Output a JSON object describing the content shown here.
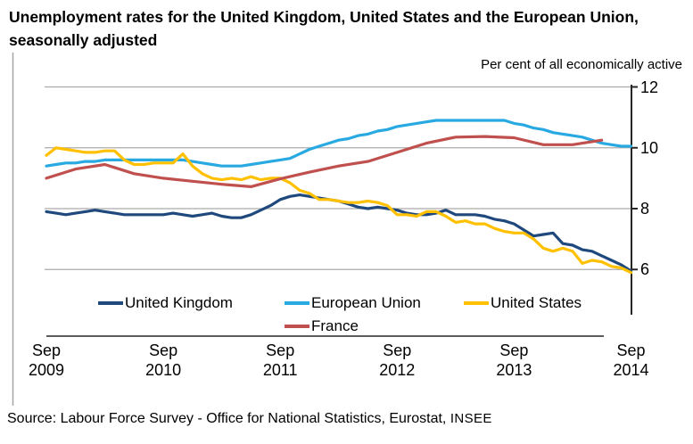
{
  "title": {
    "line1": "Unemployment rates for the United Kingdom, United States and the European Union,",
    "line2": "seasonally adjusted"
  },
  "chart": {
    "axis_title": "Per cent of all economically active",
    "y_tick_labels": [
      "12",
      "10",
      "8",
      "6"
    ],
    "x_ticks": [
      {
        "month": "Sep",
        "year": "2009"
      },
      {
        "month": "Sep",
        "year": "2010"
      },
      {
        "month": "Sep",
        "year": "2011"
      },
      {
        "month": "Sep",
        "year": "2012"
      },
      {
        "month": "Sep",
        "year": "2013"
      },
      {
        "month": "Sep",
        "year": "2014"
      }
    ],
    "legend": [
      {
        "label": "United Kingdom",
        "color": "#1F497D"
      },
      {
        "label": "European Union",
        "color": "#29A9E1"
      },
      {
        "label": "United States",
        "color": "#FFC000"
      },
      {
        "label": "France",
        "color": "#C0504D"
      }
    ],
    "colors": {
      "gridline": "#ABABAB",
      "axis": "#262626",
      "border": "#A6A6A6"
    }
  },
  "source": {
    "main": "Source: Labour Force Survey - Office for National Statistics, Eurostat,",
    "extra": "INSEE"
  },
  "chart_data": {
    "type": "line",
    "title": "Unemployment rates for the United Kingdom, United States and the European Union, seasonally adjusted",
    "ylabel": "Per cent of all economically active",
    "x_start": "2009-09",
    "x_end": "2014-09",
    "x_tick_labels": [
      "Sep 2009",
      "Sep 2010",
      "Sep 2011",
      "Sep 2012",
      "Sep 2013",
      "Sep 2014"
    ],
    "y_ticks": [
      6,
      8,
      10,
      12
    ],
    "ylim": [
      4.5,
      12
    ],
    "grid": true,
    "legend_position": "bottom",
    "series": [
      {
        "name": "United Kingdom",
        "color": "#1F497D",
        "start": "2009-09",
        "interval_months": 1,
        "values": [
          7.9,
          7.85,
          7.8,
          7.85,
          7.9,
          7.95,
          7.9,
          7.85,
          7.8,
          7.8,
          7.8,
          7.8,
          7.8,
          7.85,
          7.8,
          7.75,
          7.8,
          7.85,
          7.75,
          7.7,
          7.7,
          7.8,
          7.95,
          8.1,
          8.3,
          8.4,
          8.45,
          8.4,
          8.35,
          8.3,
          8.25,
          8.15,
          8.05,
          8.0,
          8.05,
          8.0,
          7.95,
          7.85,
          7.8,
          7.8,
          7.85,
          7.95,
          7.8,
          7.8,
          7.8,
          7.75,
          7.65,
          7.6,
          7.5,
          7.3,
          7.1,
          7.15,
          7.2,
          6.85,
          6.8,
          6.65,
          6.6,
          6.45,
          6.3,
          6.15,
          5.95
        ]
      },
      {
        "name": "European Union",
        "color": "#29A9E1",
        "start": "2009-09",
        "interval_months": 1,
        "values": [
          9.4,
          9.45,
          9.5,
          9.5,
          9.55,
          9.55,
          9.6,
          9.6,
          9.6,
          9.6,
          9.6,
          9.6,
          9.6,
          9.6,
          9.6,
          9.55,
          9.5,
          9.45,
          9.4,
          9.4,
          9.4,
          9.45,
          9.5,
          9.55,
          9.6,
          9.65,
          9.8,
          9.95,
          10.05,
          10.15,
          10.25,
          10.3,
          10.4,
          10.45,
          10.55,
          10.6,
          10.7,
          10.75,
          10.8,
          10.85,
          10.9,
          10.9,
          10.9,
          10.9,
          10.9,
          10.9,
          10.9,
          10.9,
          10.8,
          10.75,
          10.65,
          10.6,
          10.5,
          10.45,
          10.4,
          10.35,
          10.25,
          10.15,
          10.1,
          10.05,
          10.05
        ]
      },
      {
        "name": "United States",
        "color": "#FFC000",
        "start": "2009-09",
        "interval_months": 1,
        "values": [
          9.75,
          10.0,
          9.95,
          9.9,
          9.85,
          9.85,
          9.9,
          9.9,
          9.6,
          9.45,
          9.45,
          9.5,
          9.5,
          9.5,
          9.8,
          9.4,
          9.15,
          9.0,
          8.95,
          9.0,
          8.95,
          9.05,
          8.95,
          9.0,
          9.0,
          8.85,
          8.6,
          8.5,
          8.3,
          8.3,
          8.25,
          8.2,
          8.2,
          8.25,
          8.2,
          8.1,
          7.8,
          7.8,
          7.75,
          7.9,
          7.9,
          7.75,
          7.55,
          7.6,
          7.5,
          7.5,
          7.35,
          7.25,
          7.2,
          7.2,
          7.0,
          6.7,
          6.6,
          6.7,
          6.6,
          6.2,
          6.3,
          6.25,
          6.1,
          6.05,
          5.9
        ]
      },
      {
        "name": "France",
        "color": "#C0504D",
        "start": "2009-09",
        "interval_months": 3,
        "values": [
          9.0,
          9.3,
          9.45,
          9.15,
          9.0,
          8.9,
          8.8,
          8.72,
          8.98,
          9.2,
          9.4,
          9.55,
          9.85,
          10.15,
          10.35,
          10.37,
          10.33,
          10.1,
          10.1,
          10.25
        ]
      }
    ]
  }
}
